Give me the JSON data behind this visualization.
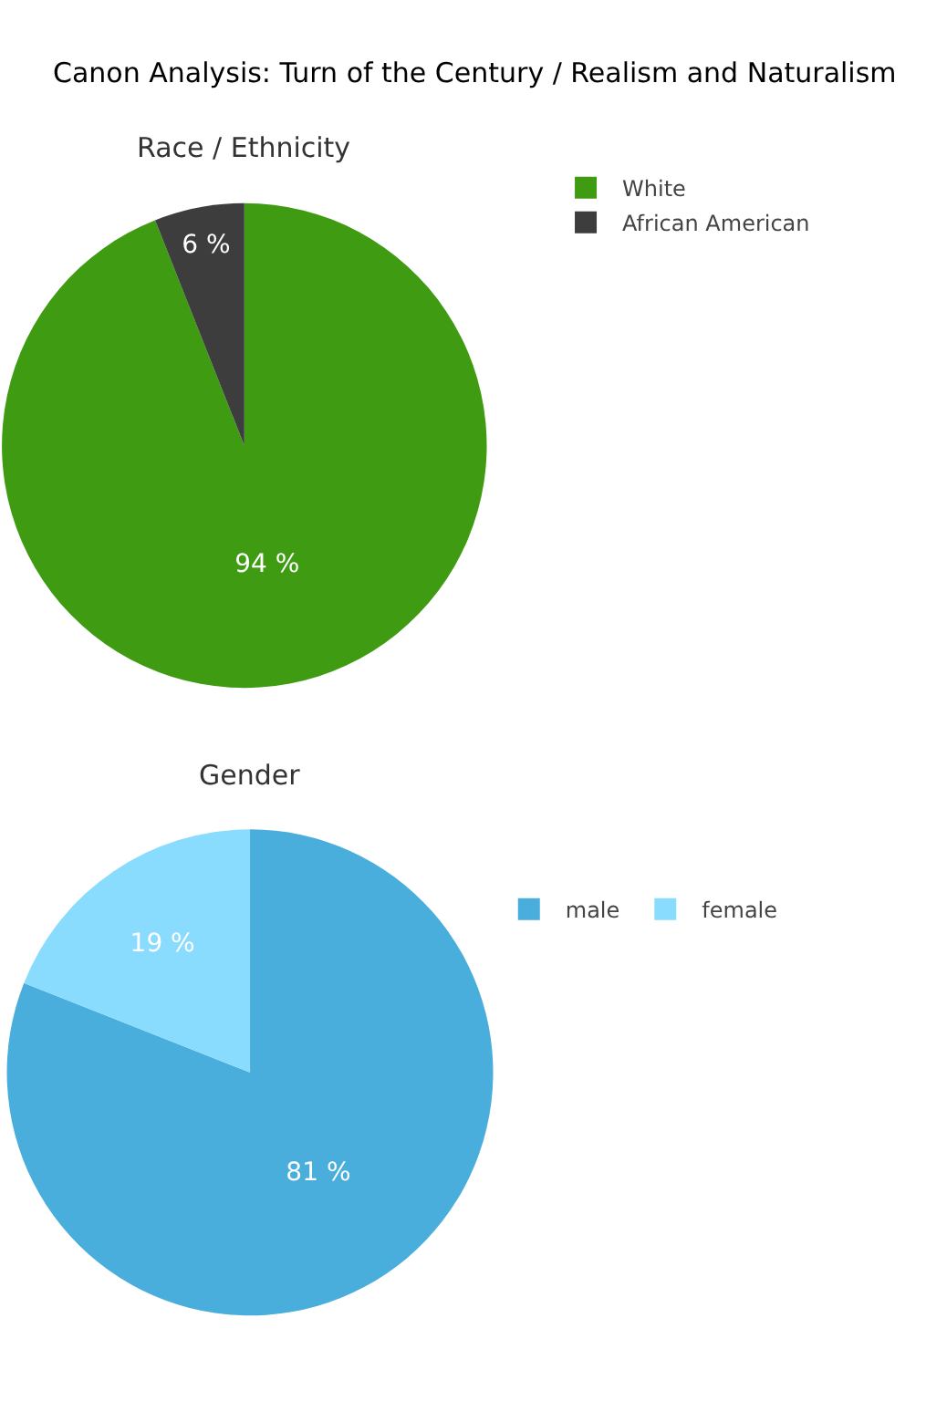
{
  "chart_data": [
    {
      "type": "pie",
      "title": "Canon Analysis: Turn of the Century / Realism and Naturalism",
      "subtitle": "Race / Ethnicity",
      "categories": [
        "White",
        "African American"
      ],
      "values": [
        94,
        6
      ],
      "colors": [
        "#3f9c12",
        "#3d3d3d"
      ],
      "value_labels": [
        "94 %",
        "6 %"
      ],
      "legend": "top right"
    },
    {
      "type": "pie",
      "subtitle": "Gender",
      "categories": [
        "male",
        "female"
      ],
      "values": [
        81,
        19
      ],
      "colors": [
        "#4aaedd",
        "#8adcff"
      ],
      "value_labels": [
        "81 %",
        "19 %"
      ],
      "legend": "right"
    }
  ]
}
